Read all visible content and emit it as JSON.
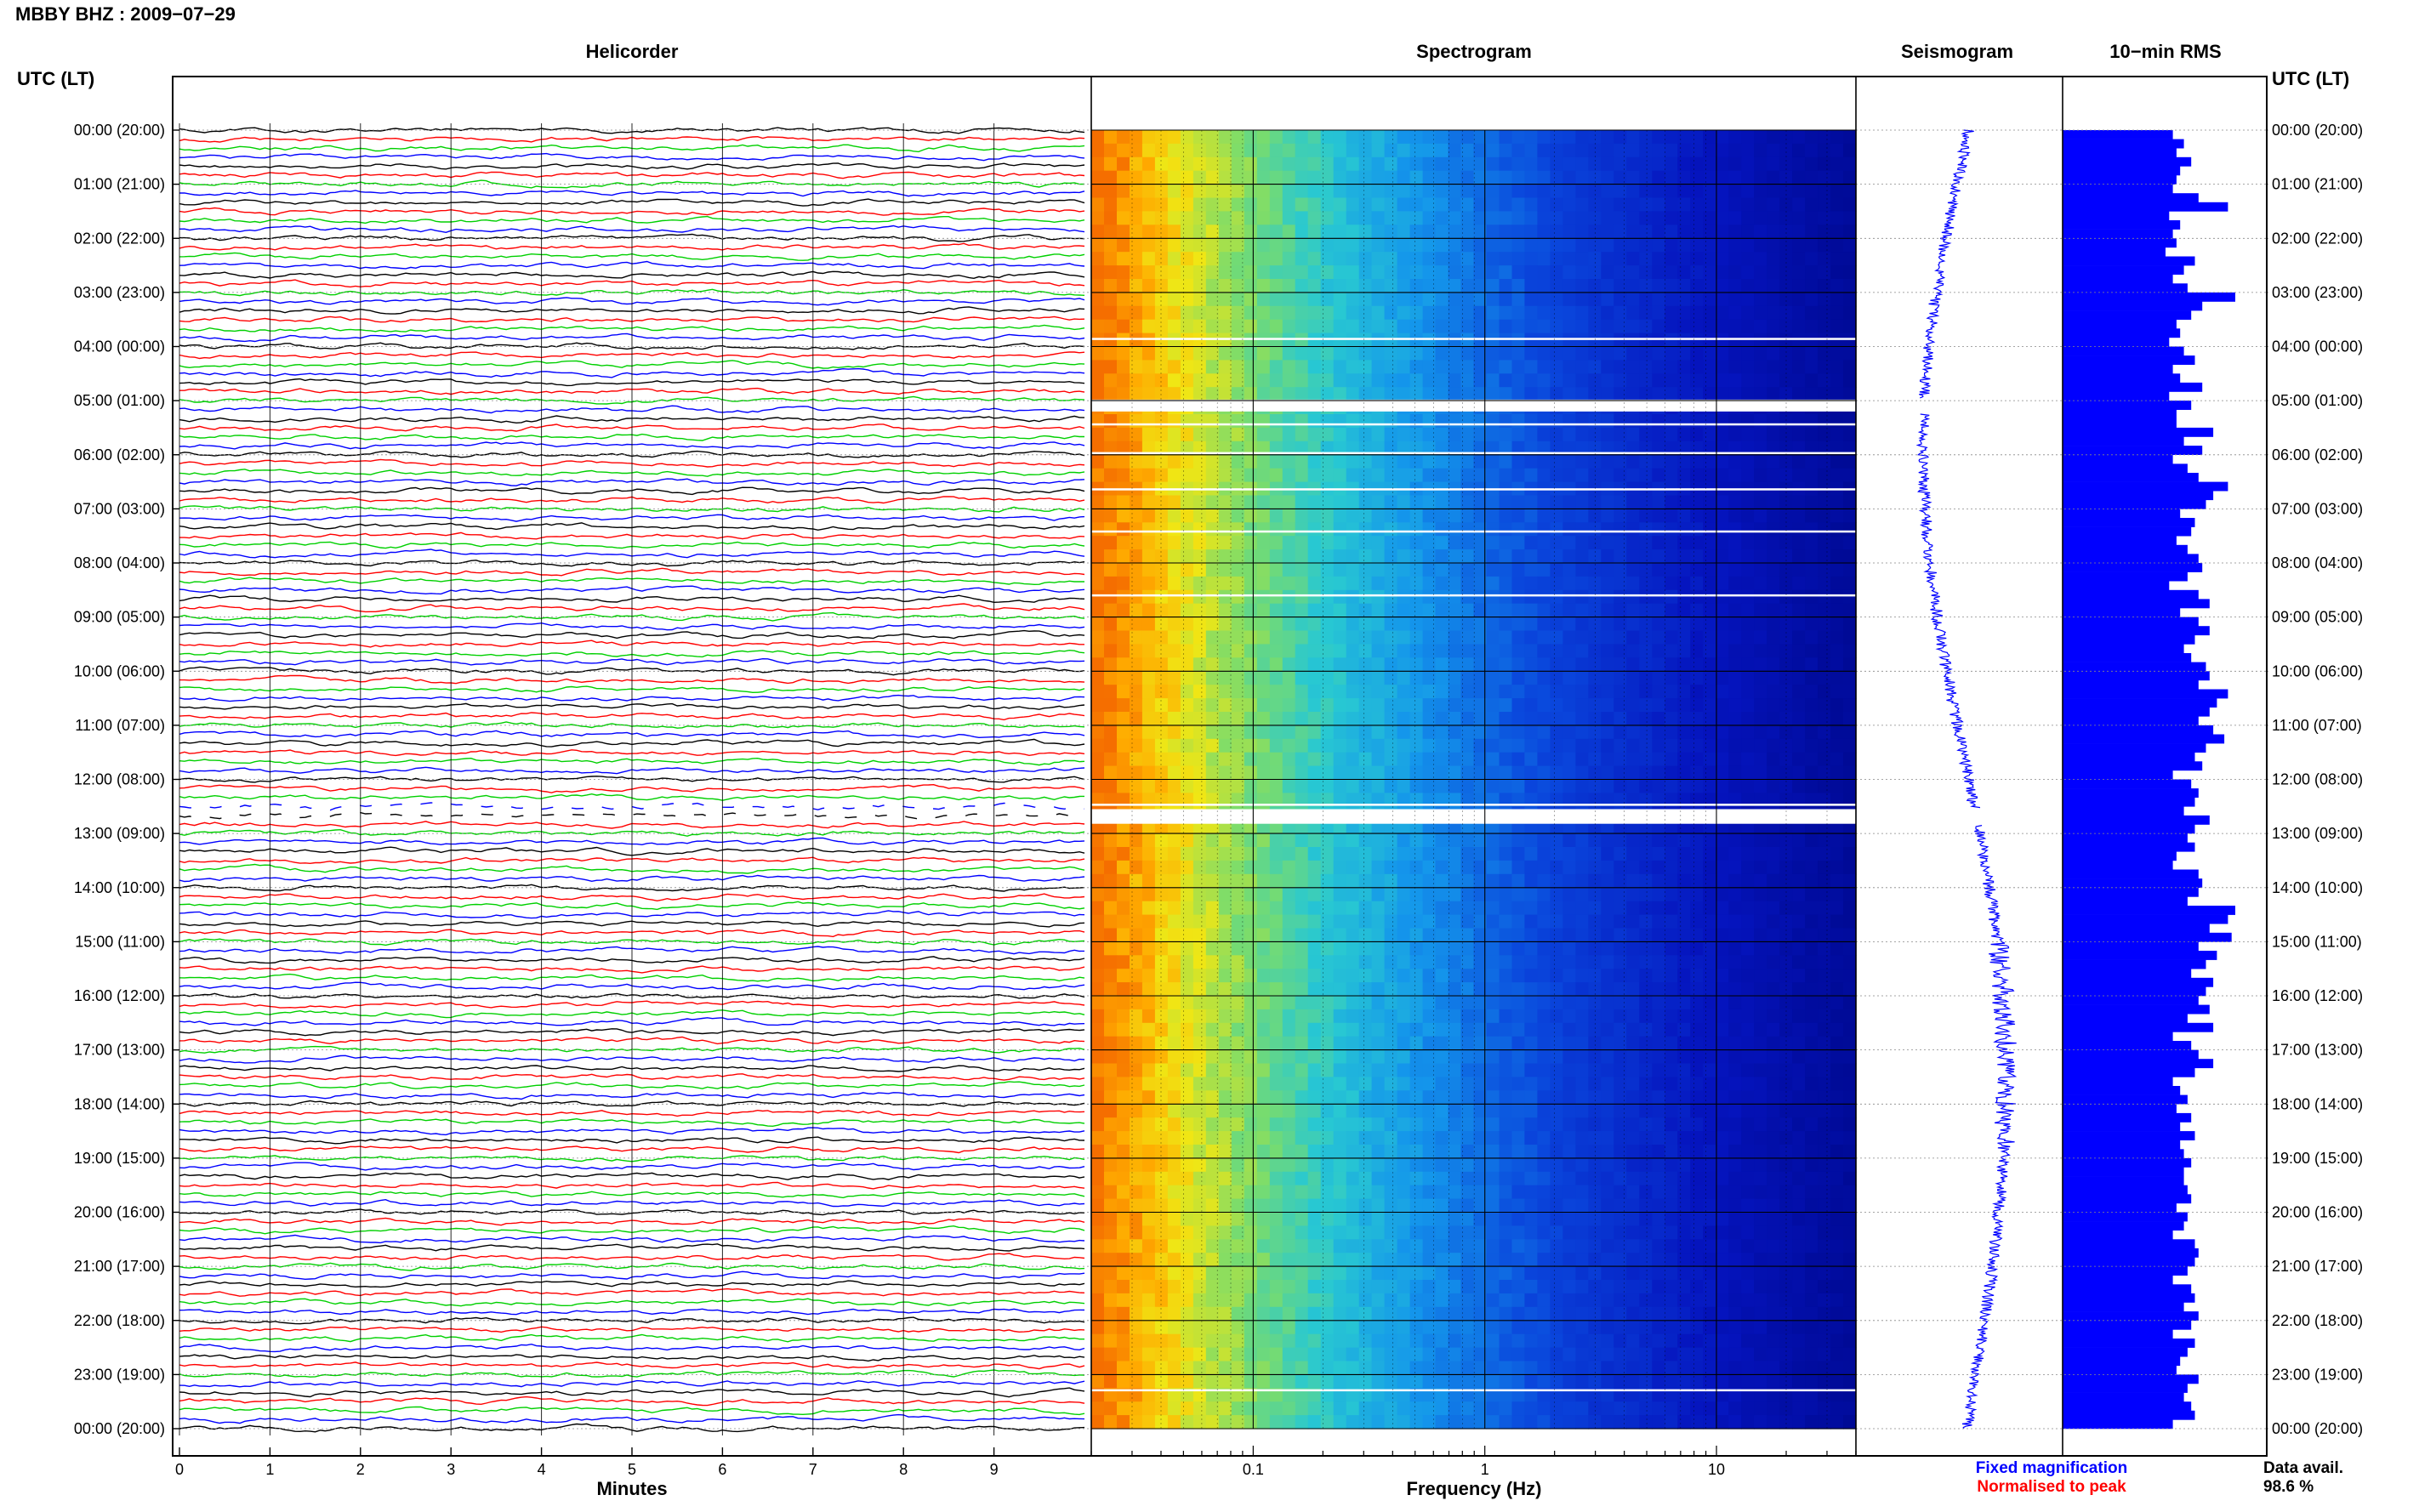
{
  "chart_data": {
    "type": "helicorder",
    "title": "MBBY BHZ : 2009−07−29",
    "panels": [
      "Helicorder",
      "Spectrogram",
      "Seismogram",
      "10−min RMS"
    ],
    "time_axis_label": "UTC (LT)",
    "time_labels": [
      "00:00 (20:00)",
      "01:00 (21:00)",
      "02:00 (22:00)",
      "03:00 (23:00)",
      "04:00 (00:00)",
      "05:00 (01:00)",
      "06:00 (02:00)",
      "07:00 (03:00)",
      "08:00 (04:00)",
      "09:00 (05:00)",
      "10:00 (06:00)",
      "11:00 (07:00)",
      "12:00 (08:00)",
      "13:00 (09:00)",
      "14:00 (10:00)",
      "15:00 (11:00)",
      "16:00 (12:00)",
      "17:00 (13:00)",
      "18:00 (14:00)",
      "19:00 (15:00)",
      "20:00 (16:00)",
      "21:00 (17:00)",
      "22:00 (18:00)",
      "23:00 (19:00)",
      "00:00 (20:00)"
    ],
    "helicorder": {
      "xlabel": "Minutes",
      "xticks": [
        "0",
        "1",
        "2",
        "3",
        "4",
        "5",
        "6",
        "7",
        "8",
        "9"
      ],
      "xlim": [
        0,
        10
      ],
      "trace_colors": [
        "#000000",
        "#ff0000",
        "#00d000",
        "#0000ff"
      ]
    },
    "spectrogram": {
      "xlabel": "Frequency (Hz)",
      "xscale": "log",
      "xlim": [
        0.02,
        40
      ],
      "xticks": [
        "0.1",
        "1",
        "10"
      ]
    },
    "seismogram": {
      "legend": [
        "Fixed magnification",
        "Normalised to peak"
      ]
    },
    "rms": {
      "values": [
        60,
        66,
        62,
        70,
        64,
        62,
        60,
        74,
        90,
        58,
        64,
        60,
        62,
        56,
        72,
        66,
        60,
        68,
        94,
        76,
        70,
        62,
        64,
        58,
        66,
        72,
        60,
        64,
        76,
        58,
        70,
        62,
        62,
        82,
        66,
        76,
        60,
        68,
        74,
        90,
        82,
        78,
        64,
        72,
        70,
        62,
        68,
        74,
        76,
        68,
        58,
        74,
        80,
        64,
        74,
        80,
        72,
        66,
        70,
        78,
        80,
        74,
        90,
        84,
        80,
        74,
        82,
        88,
        78,
        72,
        76,
        60,
        70,
        74,
        72,
        66,
        80,
        72,
        68,
        72,
        62,
        60,
        74,
        76,
        74,
        68,
        94,
        90,
        80,
        92,
        74,
        84,
        78,
        70,
        82,
        78,
        74,
        80,
        68,
        82,
        60,
        70,
        74,
        82,
        72,
        60,
        64,
        68,
        62,
        70,
        64,
        72,
        64,
        66,
        70,
        66,
        66,
        68,
        70,
        62,
        68,
        66,
        60,
        72,
        74,
        72,
        68,
        60,
        70,
        72,
        66,
        74,
        70,
        60,
        72,
        68,
        64,
        62,
        74,
        68,
        66,
        70,
        72,
        60
      ],
      "value_unit": "relative",
      "footer_title": "Data avail.",
      "footer_value": "98.6 %"
    },
    "colors": {
      "fixed": "#0000ff",
      "normalised": "#ff0000",
      "grid": "#000000",
      "rms_fill": "#0000ff"
    }
  }
}
